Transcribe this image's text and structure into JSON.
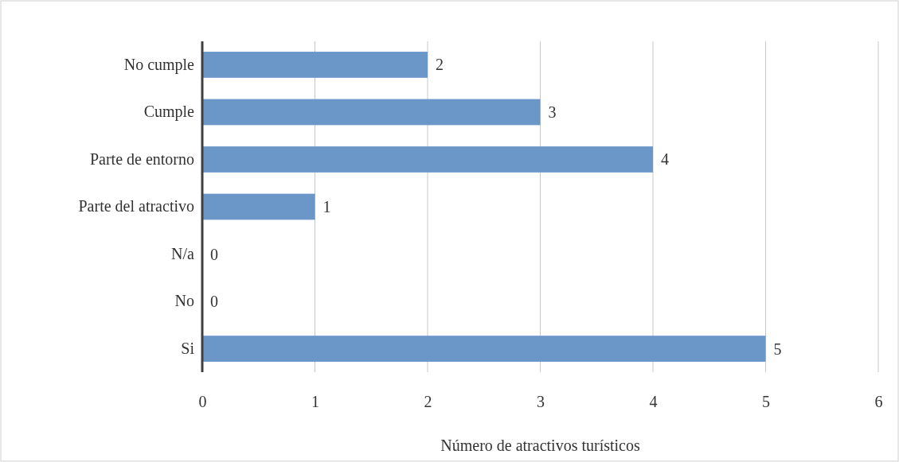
{
  "chart_data": {
    "type": "bar",
    "orientation": "horizontal",
    "categories": [
      "No cumple",
      "Cumple",
      "Parte de entorno",
      "Parte del atractivo",
      "N/a",
      "No",
      "Si"
    ],
    "values": [
      2,
      3,
      4,
      1,
      0,
      0,
      5
    ],
    "color": "#6a96c8",
    "xlim": [
      0,
      6
    ],
    "xticks": [
      0,
      1,
      2,
      3,
      4,
      5,
      6
    ],
    "grid": "x",
    "data_labels": true,
    "xlabel": "Número de atractivos turísticos"
  }
}
